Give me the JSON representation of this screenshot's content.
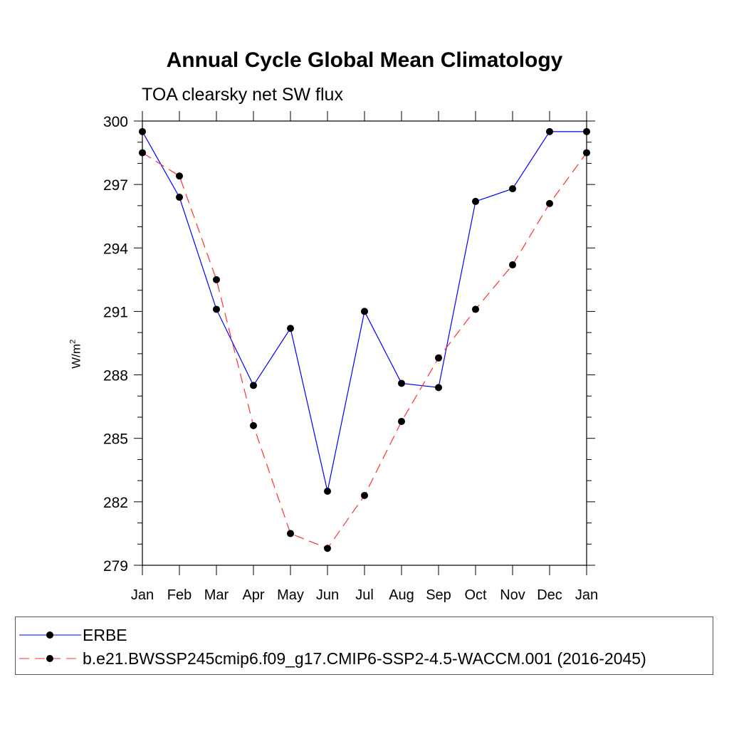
{
  "chart_data": {
    "type": "line",
    "title": "Annual Cycle Global Mean Climatology",
    "subtitle": "TOA clearsky net SW flux",
    "ylabel_base": "W/m",
    "ylabel_sup": "2",
    "xlabel": "",
    "categories": [
      "Jan",
      "Feb",
      "Mar",
      "Apr",
      "May",
      "Jun",
      "Jul",
      "Aug",
      "Sep",
      "Oct",
      "Nov",
      "Dec",
      "Jan"
    ],
    "ylim": [
      279,
      300
    ],
    "yticks": [
      279,
      282,
      285,
      288,
      291,
      294,
      297,
      300
    ],
    "series": [
      {
        "name": "ERBE",
        "color": "#0000ff",
        "dash": "solid",
        "values": [
          299.5,
          296.4,
          291.1,
          287.5,
          290.2,
          282.5,
          291.0,
          287.6,
          287.4,
          296.2,
          296.8,
          299.5,
          299.5
        ]
      },
      {
        "name": "b.e21.BWSSP245cmip6.f09_g17.CMIP6-SSP2-4.5-WACCM.001 (2016-2045)",
        "color": "#ff3030",
        "dash": "dashed",
        "values": [
          298.5,
          297.4,
          292.5,
          285.6,
          280.5,
          279.8,
          282.3,
          285.8,
          288.8,
          291.1,
          293.2,
          296.1,
          298.5
        ]
      }
    ],
    "grid": false,
    "legend_position": "bottom"
  }
}
